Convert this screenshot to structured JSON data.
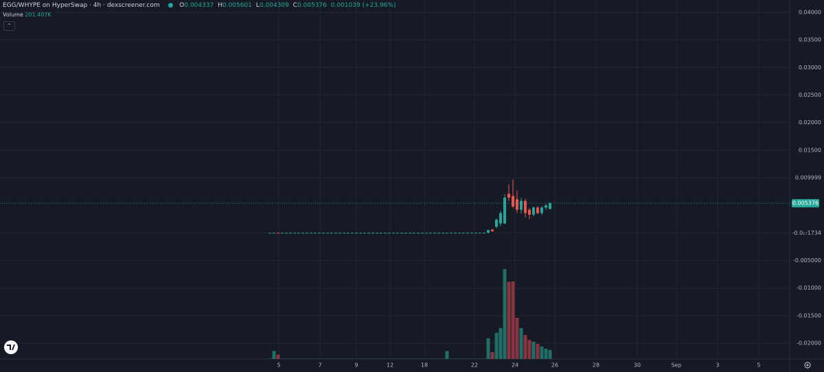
{
  "chart_data": {
    "type": "candlestick",
    "title": "EGG/WHYPE on HyperSwap · 4h · dexscreener.com",
    "ohlc_letters": [
      "O",
      "H",
      "L",
      "C"
    ],
    "change_label": "0.001039 (+23.96%)",
    "volume_title": "Volume",
    "volume_value_label": "201.407K",
    "up_color": "#26a69a",
    "down_color": "#ef5350",
    "volume_up_color": "#1f6f66",
    "volume_down_color": "#8a3441",
    "ylim": [
      -0.02523,
      0.04224
    ],
    "yticks": [
      {
        "value": 0.04,
        "label": "0.04000"
      },
      {
        "value": 0.035,
        "label": "0.03500"
      },
      {
        "value": 0.03,
        "label": "0.03000"
      },
      {
        "value": 0.025,
        "label": "0.02500"
      },
      {
        "value": 0.02,
        "label": "0.02000"
      },
      {
        "value": 0.015,
        "label": "0.01500"
      },
      0.009999,
      {
        "value": -1.734e-18,
        "label": "-0.0₁₇1734"
      },
      {
        "value": -0.005,
        "label": "-0.005000"
      },
      {
        "value": -0.01,
        "label": "-0.01000"
      },
      {
        "value": -0.015,
        "label": "-0.01500"
      },
      {
        "value": -0.02,
        "label": "-0.02000"
      }
    ],
    "x_labels": [
      "5",
      "7",
      "9",
      "12",
      "18",
      "22",
      "24",
      "26",
      "28",
      "30",
      "Sep",
      "3",
      "5"
    ],
    "grid": true,
    "candles": [
      [
        2e-05,
        2e-05,
        2e-05,
        2e-05
      ],
      [
        2e-05,
        2e-05,
        2e-05,
        2e-05
      ],
      [
        3e-05,
        3e-05,
        2e-05,
        2e-05
      ],
      [
        2e-05,
        2e-05,
        2e-05,
        2e-05
      ],
      [
        2e-05,
        2e-05,
        2e-05,
        2e-05
      ],
      [
        2e-05,
        2e-05,
        2e-05,
        2e-05
      ],
      [
        2e-05,
        2e-05,
        2e-05,
        2e-05
      ],
      [
        2e-05,
        2e-05,
        2e-05,
        2e-05
      ],
      [
        2e-05,
        2e-05,
        2e-05,
        2e-05
      ],
      [
        2e-05,
        2e-05,
        2e-05,
        2e-05
      ],
      [
        2e-05,
        2e-05,
        2e-05,
        2e-05
      ],
      [
        2e-05,
        2e-05,
        2e-05,
        2e-05
      ],
      [
        2e-05,
        2e-05,
        2e-05,
        2e-05
      ],
      [
        2e-05,
        2e-05,
        2e-05,
        2e-05
      ],
      [
        2e-05,
        2e-05,
        2e-05,
        2e-05
      ],
      [
        2e-05,
        2e-05,
        2e-05,
        2e-05
      ],
      [
        2e-05,
        2e-05,
        2e-05,
        2e-05
      ],
      [
        2e-05,
        2e-05,
        2e-05,
        2e-05
      ],
      [
        2e-05,
        2e-05,
        2e-05,
        2e-05
      ],
      [
        2e-05,
        2e-05,
        2e-05,
        2e-05
      ],
      [
        2e-05,
        2e-05,
        2e-05,
        2e-05
      ],
      [
        2e-05,
        2e-05,
        2e-05,
        2e-05
      ],
      [
        2e-05,
        2e-05,
        2e-05,
        2e-05
      ],
      [
        2e-05,
        2e-05,
        2e-05,
        2e-05
      ],
      [
        2e-05,
        2e-05,
        2e-05,
        2e-05
      ],
      [
        2e-05,
        2e-05,
        2e-05,
        2e-05
      ],
      [
        2e-05,
        2e-05,
        2e-05,
        2e-05
      ],
      [
        2e-05,
        2e-05,
        2e-05,
        2e-05
      ],
      [
        2e-05,
        2e-05,
        2e-05,
        2e-05
      ],
      [
        2e-05,
        2e-05,
        2e-05,
        2e-05
      ],
      [
        2e-05,
        2e-05,
        2e-05,
        2e-05
      ],
      [
        2e-05,
        2e-05,
        2e-05,
        2e-05
      ],
      [
        2e-05,
        2e-05,
        2e-05,
        2e-05
      ],
      [
        2e-05,
        2e-05,
        2e-05,
        2e-05
      ],
      [
        2e-05,
        2e-05,
        2e-05,
        2e-05
      ],
      [
        2e-05,
        2e-05,
        2e-05,
        2e-05
      ],
      [
        2e-05,
        2e-05,
        2e-05,
        2e-05
      ],
      [
        2e-05,
        2e-05,
        2e-05,
        2e-05
      ],
      [
        2e-05,
        2e-05,
        2e-05,
        2e-05
      ],
      [
        2e-05,
        2e-05,
        2e-05,
        2e-05
      ],
      [
        2e-05,
        2e-05,
        2e-05,
        2e-05
      ],
      [
        2e-05,
        2e-05,
        2e-05,
        2e-05
      ],
      [
        2e-05,
        2e-05,
        2e-05,
        2e-05
      ],
      [
        2e-05,
        3e-05,
        2e-05,
        3e-05
      ],
      [
        3e-05,
        3e-05,
        3e-05,
        3e-05
      ],
      [
        3e-05,
        3e-05,
        3e-05,
        3e-05
      ],
      [
        3e-05,
        3e-05,
        3e-05,
        3e-05
      ],
      [
        3e-05,
        3e-05,
        3e-05,
        3e-05
      ],
      [
        3e-05,
        3e-05,
        3e-05,
        3e-05
      ],
      [
        3e-05,
        3e-05,
        3e-05,
        3e-05
      ],
      [
        3e-05,
        3e-05,
        3e-05,
        3e-05
      ],
      [
        3e-05,
        3e-05,
        3e-05,
        3e-05
      ],
      [
        3e-05,
        3e-05,
        3e-05,
        3e-05
      ],
      [
        3e-05,
        0.0006,
        -0.0001,
        0.0005
      ],
      [
        0.0006,
        0.0007,
        0.0002,
        0.0003
      ],
      [
        0.0011,
        0.0026,
        0.0009,
        0.0024
      ],
      [
        0.0017,
        0.004,
        0.0012,
        0.0036
      ],
      [
        0.0017,
        0.007,
        0.0016,
        0.0064
      ],
      [
        0.0071,
        0.0088,
        0.0058,
        0.0064
      ],
      [
        0.0067,
        0.0097,
        0.0045,
        0.0048
      ],
      [
        0.0061,
        0.0077,
        0.0036,
        0.0042
      ],
      [
        0.0042,
        0.0064,
        0.0035,
        0.0058
      ],
      [
        0.0058,
        0.0062,
        0.0028,
        0.0036
      ],
      [
        0.0042,
        0.0045,
        0.0025,
        0.0033
      ],
      [
        0.0033,
        0.0048,
        0.003,
        0.0046
      ],
      [
        0.0046,
        0.0049,
        0.0034,
        0.0036
      ],
      [
        0.0036,
        0.0048,
        0.0033,
        0.0046
      ],
      [
        0.0046,
        0.0052,
        0.0042,
        0.005
      ],
      [
        0.004337,
        0.005601,
        0.004309,
        0.005376
      ]
    ],
    "volume": [
      8000,
      180000,
      100000,
      8000,
      8000,
      8000,
      8000,
      8000,
      8000,
      8000,
      8000,
      8000,
      8000,
      8000,
      8000,
      8000,
      8000,
      8000,
      8000,
      8000,
      8000,
      8000,
      8000,
      8000,
      8000,
      8000,
      8000,
      8000,
      8000,
      8000,
      8000,
      8000,
      8000,
      8000,
      8000,
      8000,
      8000,
      8000,
      8000,
      8000,
      8000,
      8000,
      8000,
      180000,
      8000,
      8000,
      8000,
      8000,
      8000,
      8000,
      8000,
      8000,
      8000,
      465000,
      155000,
      589000,
      700000,
      2030000,
      1740000,
      1750000,
      930000,
      700000,
      540000,
      430000,
      390000,
      340000,
      280000,
      230000,
      201407
    ]
  }
}
